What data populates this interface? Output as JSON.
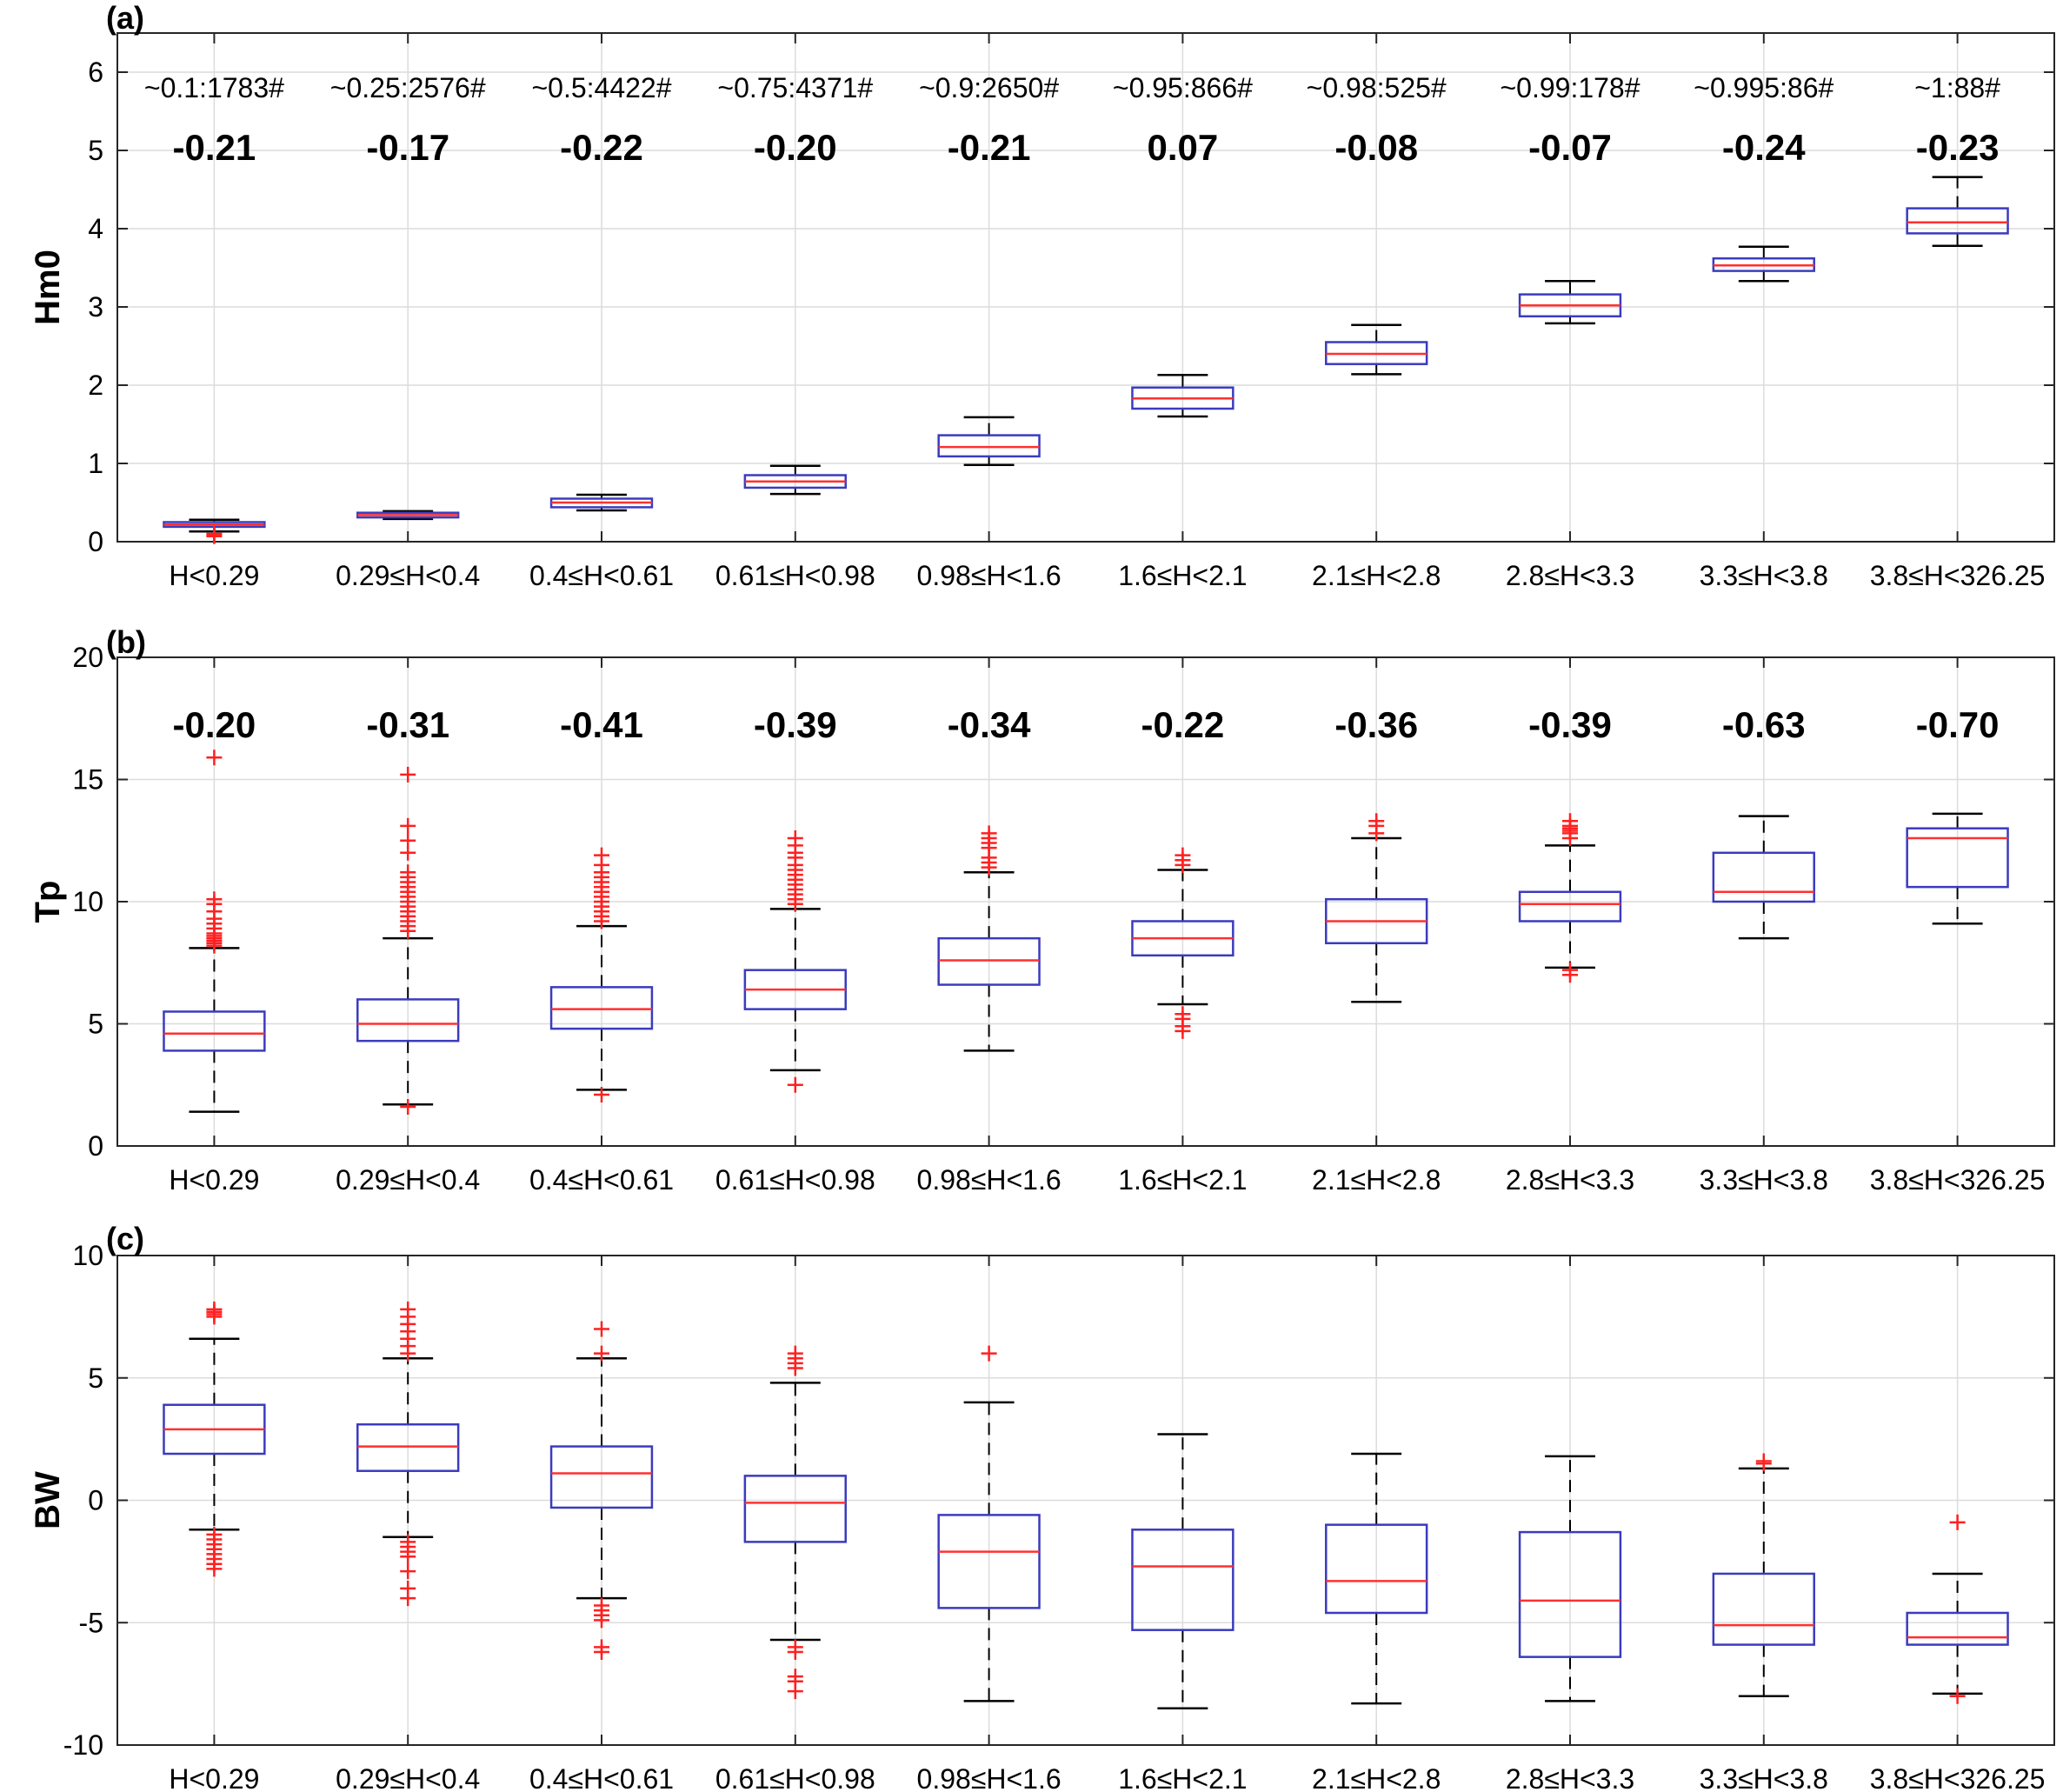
{
  "colors": {
    "box": "#3b3bbf",
    "median": "#ff3030",
    "whisker": "#000000",
    "outlier": "#ff2020",
    "grid": "#dcdcdc",
    "axis": "#262626"
  },
  "chart_data": [
    {
      "type": "box",
      "panel_label": "(a)",
      "ylabel": "Hm0",
      "ylim": [
        0,
        6.5
      ],
      "yticks": [
        0,
        1,
        2,
        3,
        4,
        5,
        6
      ],
      "categories": [
        "H<0.29",
        "0.29≤H<0.4",
        "0.4≤H<0.61",
        "0.61≤H<0.98",
        "0.98≤H<1.6",
        "1.6≤H<2.1",
        "2.1≤H<2.8",
        "2.8≤H<3.3",
        "3.3≤H<3.8",
        "3.8≤H<326.25"
      ],
      "count_labels": [
        "~0.1:1783#",
        "~0.25:2576#",
        "~0.5:4422#",
        "~0.75:4371#",
        "~0.9:2650#",
        "~0.95:866#",
        "~0.98:525#",
        "~0.99:178#",
        "~0.995:86#",
        "~1:88#"
      ],
      "correlations": [
        "-0.21",
        "-0.17",
        "-0.22",
        "-0.20",
        "-0.21",
        "0.07",
        "-0.08",
        "-0.07",
        "-0.24",
        "-0.23"
      ],
      "boxes": [
        {
          "whisker_low": 0.13,
          "q1": 0.19,
          "median": 0.22,
          "q3": 0.25,
          "whisker_high": 0.28,
          "outliers": [
            0.07,
            0.08,
            0.1
          ]
        },
        {
          "whisker_low": 0.29,
          "q1": 0.31,
          "median": 0.34,
          "q3": 0.37,
          "whisker_high": 0.39,
          "outliers": []
        },
        {
          "whisker_low": 0.4,
          "q1": 0.44,
          "median": 0.5,
          "q3": 0.55,
          "whisker_high": 0.6,
          "outliers": []
        },
        {
          "whisker_low": 0.61,
          "q1": 0.69,
          "median": 0.77,
          "q3": 0.85,
          "whisker_high": 0.97,
          "outliers": []
        },
        {
          "whisker_low": 0.98,
          "q1": 1.09,
          "median": 1.21,
          "q3": 1.36,
          "whisker_high": 1.59,
          "outliers": []
        },
        {
          "whisker_low": 1.6,
          "q1": 1.7,
          "median": 1.83,
          "q3": 1.97,
          "whisker_high": 2.13,
          "outliers": []
        },
        {
          "whisker_low": 2.14,
          "q1": 2.27,
          "median": 2.4,
          "q3": 2.55,
          "whisker_high": 2.77,
          "outliers": []
        },
        {
          "whisker_low": 2.79,
          "q1": 2.88,
          "median": 3.02,
          "q3": 3.16,
          "whisker_high": 3.33,
          "outliers": []
        },
        {
          "whisker_low": 3.33,
          "q1": 3.46,
          "median": 3.53,
          "q3": 3.62,
          "whisker_high": 3.77,
          "outliers": []
        },
        {
          "whisker_low": 3.78,
          "q1": 3.94,
          "median": 4.08,
          "q3": 4.26,
          "whisker_high": 4.66,
          "outliers": []
        }
      ]
    },
    {
      "type": "box",
      "panel_label": "(b)",
      "ylabel": "Tp",
      "ylim": [
        0,
        20
      ],
      "yticks": [
        0,
        5,
        10,
        15,
        20
      ],
      "categories": [
        "H<0.29",
        "0.29≤H<0.4",
        "0.4≤H<0.61",
        "0.61≤H<0.98",
        "0.98≤H<1.6",
        "1.6≤H<2.1",
        "2.1≤H<2.8",
        "2.8≤H<3.3",
        "3.3≤H<3.8",
        "3.8≤H<326.25"
      ],
      "correlations": [
        "-0.20",
        "-0.31",
        "-0.41",
        "-0.39",
        "-0.34",
        "-0.22",
        "-0.36",
        "-0.39",
        "-0.63",
        "-0.70"
      ],
      "boxes": [
        {
          "whisker_low": 1.4,
          "q1": 3.9,
          "median": 4.6,
          "q3": 5.5,
          "whisker_high": 8.1,
          "outliers": [
            8.2,
            8.3,
            8.4,
            8.5,
            8.6,
            8.7,
            8.9,
            9.1,
            9.3,
            9.6,
            9.9,
            10.1,
            15.9
          ]
        },
        {
          "whisker_low": 1.7,
          "q1": 4.3,
          "median": 5.0,
          "q3": 6.0,
          "whisker_high": 8.5,
          "outliers": [
            1.6,
            8.8,
            9.0,
            9.2,
            9.4,
            9.6,
            9.8,
            10.0,
            10.2,
            10.4,
            10.6,
            10.8,
            11.0,
            11.2,
            12.0,
            12.5,
            13.1,
            15.2
          ]
        },
        {
          "whisker_low": 2.3,
          "q1": 4.8,
          "median": 5.6,
          "q3": 6.5,
          "whisker_high": 9.0,
          "outliers": [
            2.1,
            9.2,
            9.4,
            9.6,
            9.8,
            10.0,
            10.2,
            10.4,
            10.6,
            10.8,
            11.0,
            11.2,
            11.5,
            11.9
          ]
        },
        {
          "whisker_low": 3.1,
          "q1": 5.6,
          "median": 6.4,
          "q3": 7.2,
          "whisker_high": 9.7,
          "outliers": [
            2.5,
            9.9,
            10.1,
            10.3,
            10.5,
            10.7,
            10.9,
            11.1,
            11.3,
            11.5,
            11.8,
            12.0,
            12.3,
            12.6
          ]
        },
        {
          "whisker_low": 3.9,
          "q1": 6.6,
          "median": 7.6,
          "q3": 8.5,
          "whisker_high": 11.2,
          "outliers": [
            11.4,
            11.6,
            11.8,
            12.2,
            12.4,
            12.6,
            12.8
          ]
        },
        {
          "whisker_low": 5.8,
          "q1": 7.8,
          "median": 8.5,
          "q3": 9.2,
          "whisker_high": 11.3,
          "outliers": [
            4.7,
            4.9,
            5.2,
            5.4,
            11.5,
            11.7,
            11.9
          ]
        },
        {
          "whisker_low": 5.9,
          "q1": 8.3,
          "median": 9.2,
          "q3": 10.1,
          "whisker_high": 12.6,
          "outliers": [
            12.8,
            13.1,
            13.3
          ]
        },
        {
          "whisker_low": 7.3,
          "q1": 9.2,
          "median": 9.9,
          "q3": 10.4,
          "whisker_high": 12.3,
          "outliers": [
            7.0,
            7.2,
            12.6,
            12.8,
            12.9,
            13.0,
            13.1,
            13.3
          ]
        },
        {
          "whisker_low": 8.5,
          "q1": 10.0,
          "median": 10.4,
          "q3": 12.0,
          "whisker_high": 13.5,
          "outliers": []
        },
        {
          "whisker_low": 9.1,
          "q1": 10.6,
          "median": 12.6,
          "q3": 13.0,
          "whisker_high": 13.6,
          "outliers": []
        }
      ]
    },
    {
      "type": "box",
      "panel_label": "(c)",
      "ylabel": "BW",
      "ylim": [
        -10,
        10
      ],
      "yticks": [
        -10,
        -5,
        0,
        5,
        10
      ],
      "categories": [
        "H<0.29",
        "0.29≤H<0.4",
        "0.4≤H<0.61",
        "0.61≤H<0.98",
        "0.98≤H<1.6",
        "1.6≤H<2.1",
        "2.1≤H<2.8",
        "2.8≤H<3.3",
        "3.3≤H<3.8",
        "3.8≤H<326.25"
      ],
      "boxes": [
        {
          "whisker_low": -1.2,
          "q1": 1.9,
          "median": 2.9,
          "q3": 3.9,
          "whisker_high": 6.6,
          "outliers": [
            -1.4,
            -1.6,
            -1.8,
            -2.0,
            -2.2,
            -2.4,
            -2.6,
            -2.8,
            7.5,
            7.6,
            7.7,
            7.8
          ]
        },
        {
          "whisker_low": -1.5,
          "q1": 1.2,
          "median": 2.2,
          "q3": 3.1,
          "whisker_high": 5.8,
          "outliers": [
            -1.7,
            -1.9,
            -2.1,
            -2.3,
            -2.9,
            -3.6,
            -4.0,
            6.0,
            6.3,
            6.6,
            6.9,
            7.2,
            7.5,
            7.8
          ]
        },
        {
          "whisker_low": -4.0,
          "q1": -0.3,
          "median": 1.1,
          "q3": 2.2,
          "whisker_high": 5.8,
          "outliers": [
            -4.3,
            -4.5,
            -4.7,
            -4.9,
            -6.0,
            -6.2,
            6.0,
            7.0
          ]
        },
        {
          "whisker_low": -5.7,
          "q1": -1.7,
          "median": -0.1,
          "q3": 1.0,
          "whisker_high": 4.8,
          "outliers": [
            -6.0,
            -6.2,
            -7.2,
            -7.4,
            -7.8,
            5.4,
            5.6,
            5.8,
            6.0
          ]
        },
        {
          "whisker_low": -8.2,
          "q1": -4.4,
          "median": -2.1,
          "q3": -0.6,
          "whisker_high": 4.0,
          "outliers": [
            6.0
          ]
        },
        {
          "whisker_low": -8.5,
          "q1": -5.3,
          "median": -2.7,
          "q3": -1.2,
          "whisker_high": 2.7,
          "outliers": []
        },
        {
          "whisker_low": -8.3,
          "q1": -4.6,
          "median": -3.3,
          "q3": -1.0,
          "whisker_high": 1.9,
          "outliers": []
        },
        {
          "whisker_low": -8.2,
          "q1": -6.4,
          "median": -4.1,
          "q3": -1.3,
          "whisker_high": 1.8,
          "outliers": []
        },
        {
          "whisker_low": -8.0,
          "q1": -5.9,
          "median": -5.1,
          "q3": -3.0,
          "whisker_high": 1.3,
          "outliers": [
            1.5,
            1.6
          ]
        },
        {
          "whisker_low": -7.9,
          "q1": -5.9,
          "median": -5.6,
          "q3": -4.6,
          "whisker_high": -3.0,
          "outliers": [
            -0.9,
            -8.0
          ]
        }
      ]
    }
  ]
}
